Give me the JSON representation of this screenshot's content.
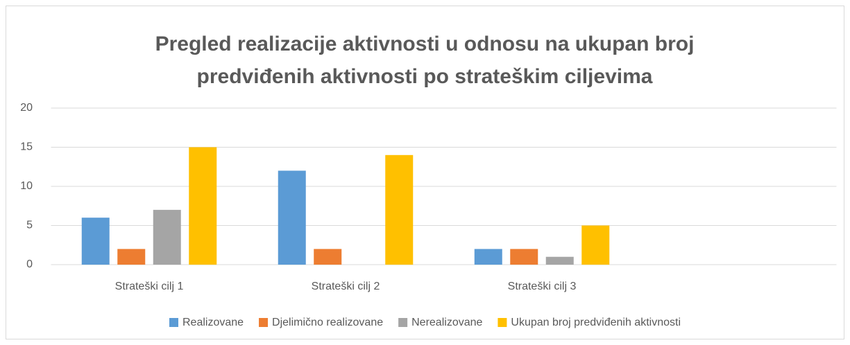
{
  "chart_data": {
    "type": "bar",
    "title": "Pregled realizacije aktivnosti u odnosu na ukupan broj predviđenih aktivnosti po strateškim ciljevima",
    "categories": [
      "Strateški cilj 1",
      "Strateški cilj 2",
      "Strateški cilj 3",
      null
    ],
    "series": [
      {
        "name": "Realizovane",
        "color": "#5b9bd5",
        "values": [
          6,
          12,
          2,
          null
        ]
      },
      {
        "name": "Djelimično realizovane",
        "color": "#ed7d31",
        "values": [
          2,
          2,
          2,
          null
        ]
      },
      {
        "name": "Nerealizovane",
        "color": "#a5a5a5",
        "values": [
          7,
          0,
          1,
          null
        ]
      },
      {
        "name": "Ukupan broj predviđenih aktivnosti",
        "color": "#ffc000",
        "values": [
          15,
          14,
          5,
          null
        ]
      }
    ],
    "ylim": [
      0,
      20
    ],
    "yticks": [
      0,
      5,
      10,
      15,
      20
    ],
    "grid": true,
    "legend": "bottom"
  }
}
